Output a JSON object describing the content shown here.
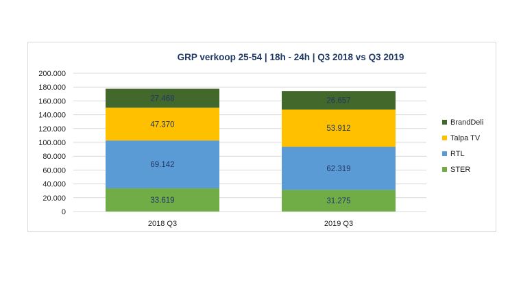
{
  "chart_data": {
    "type": "bar",
    "stacked": true,
    "title": "GRP verkoop 25-54 | 18h - 24h | Q3 2018 vs Q3 2019",
    "categories": [
      "2018 Q3",
      "2019 Q3"
    ],
    "series": [
      {
        "name": "STER",
        "color": "#70ad47",
        "values": [
          33619,
          31275
        ],
        "labels": [
          "33.619",
          "31.275"
        ]
      },
      {
        "name": "RTL",
        "color": "#5b9bd5",
        "values": [
          69142,
          62319
        ],
        "labels": [
          "69.142",
          "62.319"
        ]
      },
      {
        "name": "Talpa TV",
        "color": "#ffc000",
        "values": [
          47370,
          53912
        ],
        "labels": [
          "47.370",
          "53.912"
        ]
      },
      {
        "name": "BrandDeli",
        "color": "#43682b",
        "values": [
          27468,
          26657
        ],
        "labels": [
          "27.468",
          "26.657"
        ]
      }
    ],
    "legend_order": [
      "BrandDeli",
      "Talpa TV",
      "RTL",
      "STER"
    ],
    "legend_position": "right",
    "ylim": [
      0,
      200000
    ],
    "yticks": [
      0,
      20000,
      40000,
      60000,
      80000,
      100000,
      120000,
      140000,
      160000,
      180000,
      200000
    ],
    "ytick_labels": [
      "0",
      "20.000",
      "40.000",
      "60.000",
      "80.000",
      "100.000",
      "120.000",
      "140.000",
      "160.000",
      "180.000",
      "200.000"
    ],
    "grid": true,
    "xlabel": "",
    "ylabel": ""
  }
}
